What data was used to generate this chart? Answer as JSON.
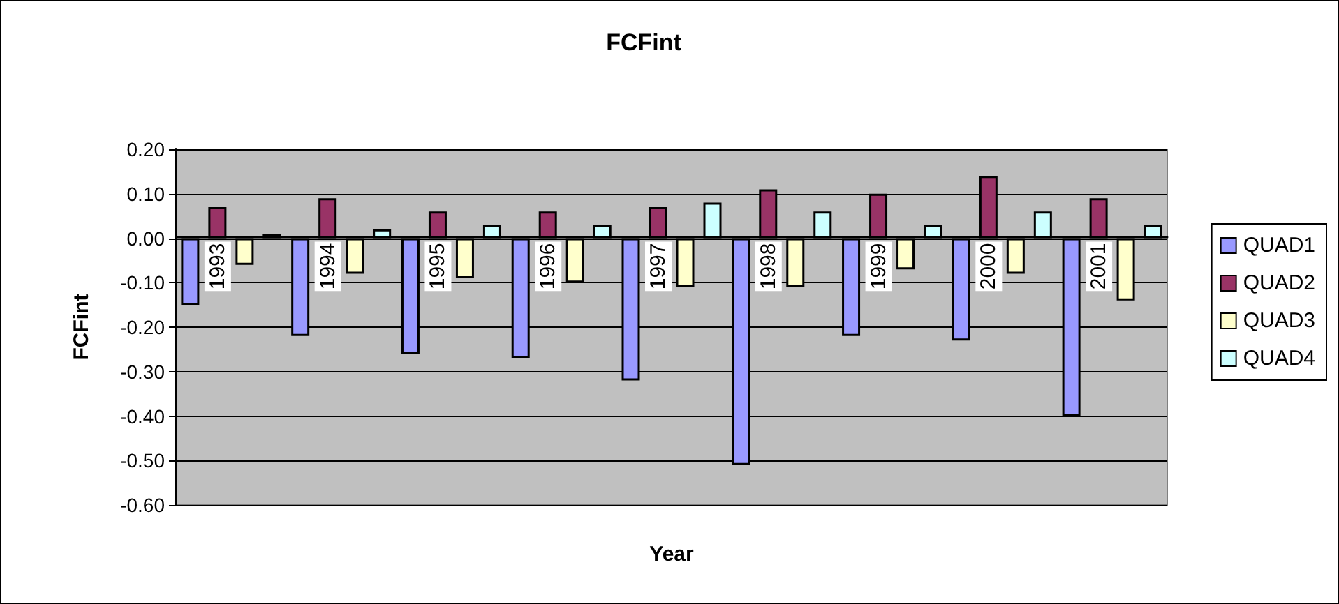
{
  "chart_data": {
    "type": "bar",
    "title": "FCFint",
    "xlabel": "Year",
    "ylabel": "FCFint",
    "categories": [
      "1993",
      "1994",
      "1995",
      "1996",
      "1997",
      "1998",
      "1999",
      "2000",
      "2001"
    ],
    "series": [
      {
        "name": "QUAD1",
        "color": "#9999ff",
        "values": [
          -0.15,
          -0.22,
          -0.26,
          -0.27,
          -0.32,
          -0.51,
          -0.22,
          -0.23,
          -0.4
        ]
      },
      {
        "name": "QUAD2",
        "color": "#993366",
        "values": [
          0.07,
          0.09,
          0.06,
          0.06,
          0.07,
          0.11,
          0.1,
          0.14,
          0.09
        ]
      },
      {
        "name": "QUAD3",
        "color": "#ffffcc",
        "values": [
          -0.06,
          -0.08,
          -0.09,
          -0.1,
          -0.11,
          -0.11,
          -0.07,
          -0.08,
          -0.14
        ]
      },
      {
        "name": "QUAD4",
        "color": "#ccffff",
        "values": [
          0.01,
          0.02,
          0.03,
          0.03,
          0.08,
          0.06,
          0.03,
          0.06,
          0.03
        ]
      }
    ],
    "ylim": [
      -0.6,
      0.2
    ],
    "yticks": [
      {
        "value": -0.6,
        "label": "-0.60"
      },
      {
        "value": -0.5,
        "label": "-0.50"
      },
      {
        "value": -0.4,
        "label": "-0.40"
      },
      {
        "value": -0.3,
        "label": "-0.30"
      },
      {
        "value": -0.2,
        "label": "-0.20"
      },
      {
        "value": -0.1,
        "label": "-0.10"
      },
      {
        "value": 0,
        "label": "0.00"
      },
      {
        "value": 0.1,
        "label": "0.10"
      },
      {
        "value": 0.2,
        "label": "0.20"
      }
    ],
    "grid": "y",
    "legend": "right"
  }
}
